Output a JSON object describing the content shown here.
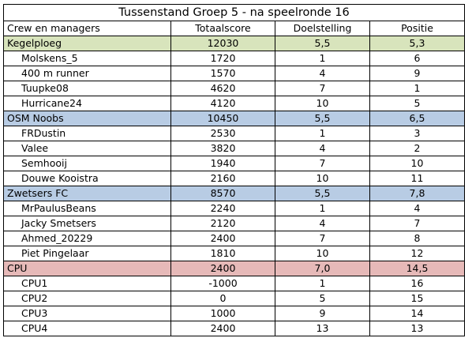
{
  "title": "Tussenstand Groep 5 - na speelronde 16",
  "headers": [
    "Crew en managers",
    "Totaalscore",
    "Doelstelling",
    "Positie"
  ],
  "teams": [
    {
      "name": "Kegelploeg",
      "total": "12030",
      "goal": "5,5",
      "pos": "5,3",
      "color": "#d8e4bc",
      "members": [
        {
          "name": "Molskens_5",
          "total": "1720",
          "goal": "1",
          "pos": "6"
        },
        {
          "name": "400 m runner",
          "total": "1570",
          "goal": "4",
          "pos": "9"
        },
        {
          "name": "Tuupke08",
          "total": "4620",
          "goal": "7",
          "pos": "1"
        },
        {
          "name": "Hurricane24",
          "total": "4120",
          "goal": "10",
          "pos": "5"
        }
      ]
    },
    {
      "name": "OSM Noobs",
      "total": "10450",
      "goal": "5,5",
      "pos": "6,5",
      "color": "#b8cce4",
      "members": [
        {
          "name": "FRDustin",
          "total": "2530",
          "goal": "1",
          "pos": "3"
        },
        {
          "name": "Valee",
          "total": "3820",
          "goal": "4",
          "pos": "2"
        },
        {
          "name": "Semhooij",
          "total": "1940",
          "goal": "7",
          "pos": "10"
        },
        {
          "name": "Douwe Kooistra",
          "total": "2160",
          "goal": "10",
          "pos": "11"
        }
      ]
    },
    {
      "name": "Zwetsers FC",
      "total": "8570",
      "goal": "5,5",
      "pos": "7,8",
      "color": "#b8cce4",
      "members": [
        {
          "name": "MrPaulusBeans",
          "total": "2240",
          "goal": "1",
          "pos": "4"
        },
        {
          "name": "Jacky Smetsers",
          "total": "2120",
          "goal": "4",
          "pos": "7"
        },
        {
          "name": "Ahmed_20229",
          "total": "2400",
          "goal": "7",
          "pos": "8"
        },
        {
          "name": "Piet Pingelaar",
          "total": "1810",
          "goal": "10",
          "pos": "12"
        }
      ]
    },
    {
      "name": "CPU",
      "total": "2400",
      "goal": "7,0",
      "pos": "14,5",
      "color": "#e6b9b8",
      "members": [
        {
          "name": "CPU1",
          "total": "-1000",
          "goal": "1",
          "pos": "16"
        },
        {
          "name": "CPU2",
          "total": "0",
          "goal": "5",
          "pos": "15"
        },
        {
          "name": "CPU3",
          "total": "1000",
          "goal": "9",
          "pos": "14"
        },
        {
          "name": "CPU4",
          "total": "2400",
          "goal": "13",
          "pos": "13"
        }
      ]
    }
  ]
}
